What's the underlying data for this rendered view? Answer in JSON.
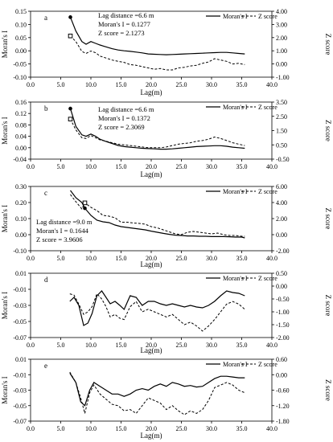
{
  "chart_data": [
    {
      "type": "line",
      "panel_letter": "a",
      "xlabel": "Lag(m)",
      "ylabel": "Moran's I",
      "ylabel_right": "Z score",
      "xlim": [
        0,
        40
      ],
      "xticks": [
        "0.0",
        "5.0",
        "10.0",
        "15.0",
        "20.0",
        "25.0",
        "30.0",
        "35.0",
        "40.0"
      ],
      "ylim": [
        -0.1,
        0.15
      ],
      "yticks": [
        "-0.10",
        "-0.05",
        "0.00",
        "0.05",
        "0.10",
        "0.15"
      ],
      "ylim_right": [
        -1.0,
        4.0
      ],
      "yticks_right": [
        "-1.00",
        "0.00",
        "1.00",
        "2.00",
        "3.00",
        "4.00"
      ],
      "legend": {
        "placement": "top-right",
        "entries": [
          "Moran's I",
          "Z score"
        ]
      },
      "annotation": {
        "lines": [
          "Lag distance =6.6 m",
          "Moran's I = 0.1277",
          "Z score = 2.1273"
        ]
      },
      "marker_left": {
        "x": 6.6,
        "y": 0.1277
      },
      "marker_right": {
        "x": 6.6,
        "y": 2.1273
      },
      "series": [
        {
          "name": "Moran's I",
          "axis": "left",
          "style": "solid",
          "x": [
            6.6,
            7.5,
            8.5,
            9.2,
            10.0,
            10.8,
            11.5,
            12.5,
            13.5,
            14.5,
            15.5,
            16.5,
            17.5,
            18.5,
            19.5,
            20.5,
            21.5,
            22.5,
            23.5,
            24.5,
            25.5,
            26.5,
            27.5,
            28.5,
            29.5,
            30.5,
            31.5,
            32.5,
            33.5,
            34.5,
            35.5
          ],
          "y": [
            0.1277,
            0.075,
            0.035,
            0.025,
            0.035,
            0.028,
            0.022,
            0.015,
            0.008,
            0.003,
            0.0,
            -0.002,
            -0.005,
            -0.008,
            -0.012,
            -0.013,
            -0.014,
            -0.015,
            -0.014,
            -0.013,
            -0.012,
            -0.011,
            -0.01,
            -0.009,
            -0.008,
            -0.007,
            -0.006,
            -0.006,
            -0.008,
            -0.01,
            -0.012
          ]
        },
        {
          "name": "Z score",
          "axis": "right",
          "style": "dashed",
          "x": [
            6.6,
            7.5,
            8.5,
            9.2,
            10.0,
            10.8,
            11.5,
            12.5,
            13.5,
            14.5,
            15.5,
            16.5,
            17.5,
            18.5,
            19.5,
            20.5,
            21.5,
            22.5,
            23.5,
            24.5,
            25.5,
            26.5,
            27.5,
            28.5,
            29.5,
            30.5,
            31.5,
            32.5,
            33.5,
            34.5,
            35.5
          ],
          "y": [
            2.1273,
            1.7,
            0.95,
            0.8,
            0.98,
            0.85,
            0.6,
            0.45,
            0.3,
            0.2,
            0.12,
            -0.05,
            -0.1,
            -0.2,
            -0.3,
            -0.4,
            -0.35,
            -0.45,
            -0.45,
            -0.3,
            -0.25,
            -0.15,
            -0.1,
            0.05,
            0.15,
            0.4,
            0.3,
            0.2,
            0.0,
            0.05,
            -0.05
          ]
        }
      ]
    },
    {
      "type": "line",
      "panel_letter": "b",
      "xlabel": "Lag(m)",
      "ylabel": "Moran's I",
      "ylabel_right": "Z score",
      "xlim": [
        0,
        40
      ],
      "xticks": [
        "0.0",
        "5.0",
        "10.0",
        "15.0",
        "20.0",
        "25.0",
        "30.0",
        "35.0",
        "40.0"
      ],
      "ylim": [
        -0.04,
        0.16
      ],
      "yticks": [
        "-0.04",
        "0.00",
        "0.04",
        "0.08",
        "0.12",
        "0.16"
      ],
      "ylim_right": [
        -0.5,
        3.5
      ],
      "yticks_right": [
        "-0.50",
        "0.50",
        "1.50",
        "2.50",
        "3.50"
      ],
      "legend": {
        "placement": "top-right",
        "entries": [
          "Moran's I",
          "Z score"
        ]
      },
      "annotation": {
        "lines": [
          "Lag distance =6.6 m",
          "Moran's I = 0.1372",
          "Z score = 2.3069"
        ]
      },
      "marker_left": {
        "x": 6.6,
        "y": 0.1372
      },
      "marker_right": {
        "x": 6.6,
        "y": 2.3069
      },
      "series": [
        {
          "name": "Moran's I",
          "axis": "left",
          "style": "solid",
          "x": [
            6.6,
            7.5,
            8.5,
            9.2,
            10.0,
            10.8,
            11.5,
            12.5,
            13.5,
            14.5,
            15.5,
            16.5,
            17.5,
            18.5,
            19.5,
            20.5,
            21.5,
            22.5,
            23.5,
            24.5,
            25.5,
            26.5,
            27.5,
            28.5,
            29.5,
            30.5,
            31.5,
            32.5,
            33.5,
            34.5,
            35.5
          ],
          "y": [
            0.1372,
            0.075,
            0.045,
            0.04,
            0.048,
            0.04,
            0.03,
            0.022,
            0.015,
            0.008,
            0.004,
            0.002,
            0.0,
            -0.002,
            -0.003,
            -0.004,
            -0.005,
            -0.005,
            -0.004,
            -0.002,
            0.0,
            0.002,
            0.004,
            0.005,
            0.006,
            0.007,
            0.007,
            0.005,
            0.002,
            0.0,
            -0.002
          ]
        },
        {
          "name": "Z score",
          "axis": "right",
          "style": "dashed",
          "x": [
            6.6,
            7.5,
            8.5,
            9.2,
            10.0,
            10.8,
            11.5,
            12.5,
            13.5,
            14.5,
            15.5,
            16.5,
            17.5,
            18.5,
            19.5,
            20.5,
            21.5,
            22.5,
            23.5,
            24.5,
            25.5,
            26.5,
            27.5,
            28.5,
            29.5,
            30.5,
            31.5,
            32.5,
            33.5,
            34.5,
            35.5
          ],
          "y": [
            2.3069,
            1.55,
            1.0,
            0.95,
            1.15,
            1.0,
            0.85,
            0.75,
            0.65,
            0.55,
            0.5,
            0.45,
            0.4,
            0.35,
            0.3,
            0.3,
            0.3,
            0.35,
            0.45,
            0.55,
            0.6,
            0.65,
            0.75,
            0.8,
            0.9,
            1.05,
            0.95,
            0.8,
            0.65,
            0.55,
            0.45
          ]
        }
      ]
    },
    {
      "type": "line",
      "panel_letter": "c",
      "xlabel": "Lag(m)",
      "ylabel": "Moran's I",
      "ylabel_right": "Z score",
      "xlim": [
        0,
        40
      ],
      "xticks": [
        "0.0",
        "5.0",
        "10.0",
        "15.0",
        "20.0",
        "25.0",
        "30.0",
        "35.0",
        "40.0"
      ],
      "ylim": [
        -0.1,
        0.3
      ],
      "yticks": [
        "-0.10",
        "0.00",
        "0.10",
        "0.20",
        "0.30"
      ],
      "ylim_right": [
        -2.0,
        6.0
      ],
      "yticks_right": [
        "-2.00",
        "0.00",
        "2.00",
        "4.00",
        "6.00"
      ],
      "legend": {
        "placement": "top-right",
        "entries": [
          "Moran's I",
          "Z score"
        ]
      },
      "annotation": {
        "lines": [
          "Lag distance =9.0 m",
          "Moran's I = 0.1644",
          "Z score = 3.9606"
        ]
      },
      "marker_left": {
        "x": 9.0,
        "y": 0.1644
      },
      "marker_right": {
        "x": 9.0,
        "y": 3.9606
      },
      "series": [
        {
          "name": "Moran's I",
          "axis": "left",
          "style": "solid",
          "x": [
            6.6,
            7.5,
            8.5,
            9.0,
            10.0,
            11.0,
            12.0,
            13.0,
            14.0,
            15.0,
            16.0,
            17.0,
            18.0,
            19.0,
            20.0,
            21.0,
            22.0,
            23.0,
            24.0,
            25.0,
            26.0,
            27.0,
            28.0,
            29.0,
            30.0,
            31.0,
            32.0,
            33.0,
            34.0,
            35.0,
            35.5
          ],
          "y": [
            0.275,
            0.23,
            0.2,
            0.1644,
            0.12,
            0.09,
            0.08,
            0.075,
            0.06,
            0.05,
            0.045,
            0.04,
            0.035,
            0.03,
            0.022,
            0.015,
            0.008,
            0.002,
            -0.003,
            -0.005,
            -0.008,
            -0.008,
            -0.01,
            -0.01,
            -0.012,
            -0.012,
            -0.012,
            -0.013,
            -0.015,
            -0.015,
            -0.02
          ]
        },
        {
          "name": "Z score",
          "axis": "right",
          "style": "dashed",
          "x": [
            6.6,
            7.5,
            8.5,
            9.0,
            10.0,
            11.0,
            12.0,
            13.0,
            14.0,
            15.0,
            16.0,
            17.0,
            18.0,
            19.0,
            20.0,
            21.0,
            22.0,
            23.0,
            24.0,
            25.0,
            26.0,
            27.0,
            28.0,
            29.0,
            30.0,
            31.0,
            32.0,
            33.0,
            34.0,
            35.0,
            35.5
          ],
          "y": [
            5.0,
            4.1,
            3.2,
            3.9606,
            3.4,
            3.0,
            2.4,
            2.3,
            2.1,
            1.55,
            1.55,
            1.45,
            1.4,
            1.3,
            1.0,
            0.85,
            0.6,
            0.35,
            0.1,
            0.0,
            0.3,
            0.4,
            0.3,
            0.2,
            0.1,
            0.2,
            0.0,
            -0.1,
            -0.1,
            -0.2,
            -0.2
          ]
        }
      ]
    },
    {
      "type": "line",
      "panel_letter": "d",
      "xlabel": "Lag(m)",
      "ylabel": "Moran's I",
      "ylabel_right": "Z score",
      "xlim": [
        0,
        40
      ],
      "xticks": [
        "0.0",
        "5.0",
        "10.0",
        "15.0",
        "20.0",
        "25.0",
        "30.0",
        "35.0",
        "40.0"
      ],
      "ylim": [
        -0.07,
        0.01
      ],
      "yticks": [
        "-0.07",
        "-0.05",
        "-0.03",
        "-0.01",
        "0.01"
      ],
      "ylim_right": [
        -2.0,
        0.5
      ],
      "yticks_right": [
        "-2.00",
        "-1.50",
        "-1.00",
        "-0.50",
        "0.00",
        "0.50"
      ],
      "legend": {
        "placement": "top-right",
        "entries": [
          "Moran's I",
          "Z score"
        ]
      },
      "series": [
        {
          "name": "Moran's I",
          "axis": "left",
          "style": "solid",
          "x": [
            6.5,
            7.2,
            8.0,
            8.8,
            9.5,
            10.2,
            11.0,
            11.8,
            12.5,
            13.2,
            14.0,
            14.8,
            15.5,
            16.5,
            17.5,
            18.5,
            19.5,
            20.5,
            21.5,
            22.5,
            23.5,
            24.5,
            25.5,
            26.5,
            27.5,
            28.5,
            29.5,
            30.5,
            31.5,
            32.5,
            33.5,
            34.5,
            35.5
          ],
          "y": [
            -0.025,
            -0.02,
            -0.03,
            -0.055,
            -0.052,
            -0.04,
            -0.018,
            -0.012,
            -0.02,
            -0.028,
            -0.025,
            -0.03,
            -0.035,
            -0.018,
            -0.02,
            -0.03,
            -0.025,
            -0.025,
            -0.028,
            -0.03,
            -0.028,
            -0.03,
            -0.032,
            -0.03,
            -0.032,
            -0.033,
            -0.03,
            -0.025,
            -0.018,
            -0.012,
            -0.014,
            -0.015,
            -0.018
          ]
        },
        {
          "name": "Z score",
          "axis": "right",
          "style": "dashed",
          "x": [
            6.5,
            7.2,
            8.0,
            8.8,
            9.5,
            10.2,
            11.0,
            11.8,
            12.5,
            13.2,
            14.0,
            14.8,
            15.5,
            16.5,
            17.5,
            18.5,
            19.5,
            20.5,
            21.5,
            22.5,
            23.5,
            24.5,
            25.5,
            26.5,
            27.5,
            28.5,
            29.5,
            30.5,
            31.5,
            32.5,
            33.5,
            34.5,
            35.5
          ],
          "y": [
            -0.3,
            -0.35,
            -0.7,
            -1.1,
            -1.0,
            -0.8,
            -0.3,
            -0.5,
            -0.8,
            -1.2,
            -1.1,
            -1.25,
            -1.3,
            -0.8,
            -0.6,
            -1.0,
            -0.9,
            -1.0,
            -1.1,
            -1.2,
            -1.1,
            -1.3,
            -1.5,
            -1.4,
            -1.55,
            -1.75,
            -1.55,
            -1.3,
            -1.0,
            -0.7,
            -0.6,
            -0.7,
            -0.9
          ]
        }
      ]
    },
    {
      "type": "line",
      "panel_letter": "e",
      "xlabel": "Lag(m)",
      "ylabel": "Moran's I",
      "ylabel_right": "Z score",
      "xlim": [
        0,
        40
      ],
      "xticks": [
        "0.0",
        "5.0",
        "10.0",
        "15.0",
        "20.0",
        "25.0",
        "30.0",
        "35.0",
        "40.0"
      ],
      "ylim": [
        -0.07,
        0.01
      ],
      "yticks": [
        "-0.07",
        "-0.05",
        "-0.03",
        "-0.01",
        "0.01"
      ],
      "ylim_right": [
        -1.8,
        0.6
      ],
      "yticks_right": [
        "-1.80",
        "-1.20",
        "-0.60",
        "0.00",
        "0.60"
      ],
      "legend": {
        "placement": "top-right",
        "entries": [
          "Moran's I",
          "Z score"
        ]
      },
      "series": [
        {
          "name": "Moran's I",
          "axis": "left",
          "style": "solid",
          "x": [
            6.5,
            7.5,
            8.3,
            9.0,
            9.8,
            10.5,
            11.5,
            12.5,
            13.5,
            14.5,
            15.5,
            16.5,
            17.5,
            18.5,
            19.5,
            20.5,
            21.5,
            22.5,
            23.5,
            24.5,
            25.5,
            26.5,
            27.5,
            28.5,
            29.5,
            30.5,
            31.5,
            32.5,
            33.5,
            34.5,
            35.5
          ],
          "y": [
            -0.008,
            -0.02,
            -0.045,
            -0.05,
            -0.03,
            -0.02,
            -0.025,
            -0.03,
            -0.035,
            -0.035,
            -0.038,
            -0.035,
            -0.03,
            -0.028,
            -0.03,
            -0.025,
            -0.022,
            -0.025,
            -0.02,
            -0.022,
            -0.025,
            -0.024,
            -0.026,
            -0.025,
            -0.02,
            -0.015,
            -0.012,
            -0.012,
            -0.013,
            -0.014,
            -0.014
          ]
        },
        {
          "name": "Z score",
          "axis": "right",
          "style": "dashed",
          "x": [
            6.5,
            7.5,
            8.3,
            9.0,
            9.8,
            10.5,
            11.5,
            12.5,
            13.5,
            14.5,
            15.5,
            16.5,
            17.5,
            18.5,
            19.5,
            20.5,
            21.5,
            22.5,
            23.5,
            24.5,
            25.5,
            26.5,
            27.5,
            28.5,
            29.5,
            30.5,
            31.5,
            32.5,
            33.5,
            34.5,
            35.5
          ],
          "y": [
            0.1,
            -0.3,
            -0.9,
            -1.5,
            -0.7,
            -0.4,
            -0.75,
            -0.95,
            -1.15,
            -1.2,
            -1.4,
            -1.35,
            -1.5,
            -1.2,
            -0.9,
            -1.0,
            -1.1,
            -1.35,
            -1.2,
            -1.4,
            -1.55,
            -1.4,
            -1.5,
            -1.35,
            -1.0,
            -0.5,
            -0.4,
            -0.3,
            -0.4,
            -0.6,
            -0.7
          ]
        }
      ]
    }
  ]
}
